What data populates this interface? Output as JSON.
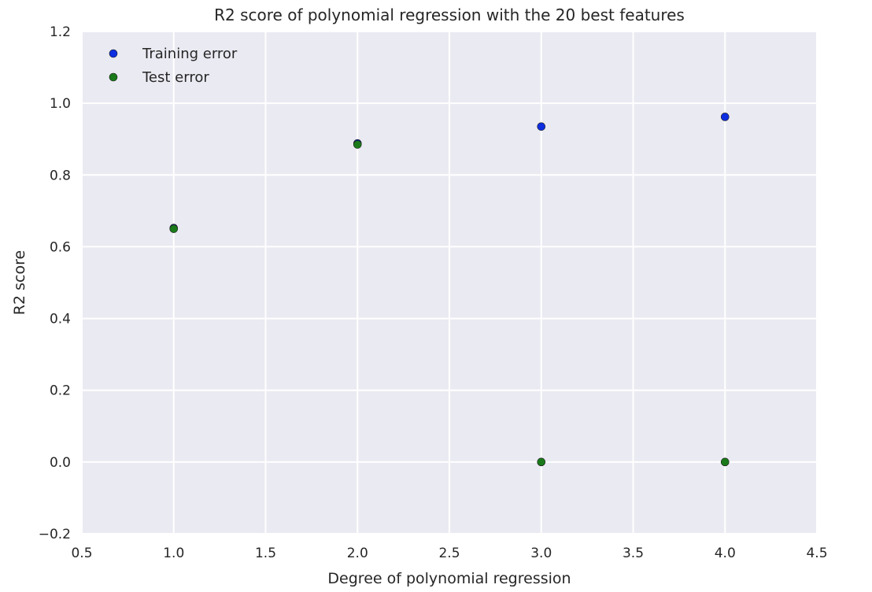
{
  "chart_data": {
    "type": "scatter",
    "title": "R2 score of polynomial regression with the 20 best features",
    "xlabel": "Degree of polynomial regression",
    "ylabel": "R2 score",
    "xlim": [
      0.5,
      4.5
    ],
    "ylim": [
      -0.2,
      1.2
    ],
    "xticks": [
      0.5,
      1.0,
      1.5,
      2.0,
      2.5,
      3.0,
      3.5,
      4.0,
      4.5
    ],
    "yticks": [
      -0.2,
      0.0,
      0.2,
      0.4,
      0.6,
      0.8,
      1.0,
      1.2
    ],
    "grid": true,
    "legend_position": "top-left",
    "background": "#eaeaf2",
    "series": [
      {
        "name": "Training error",
        "color": "#0d2ee0",
        "x": [
          1,
          2,
          3,
          4
        ],
        "y": [
          0.652,
          0.888,
          0.935,
          0.962
        ]
      },
      {
        "name": "Test error",
        "color": "#1a7a1a",
        "x": [
          1,
          2,
          3,
          4
        ],
        "y": [
          0.65,
          0.885,
          0.0,
          0.0
        ]
      }
    ]
  }
}
